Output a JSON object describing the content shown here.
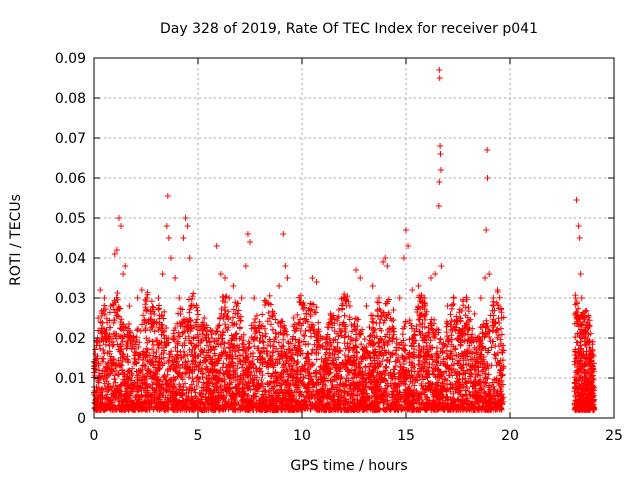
{
  "chart_data": {
    "type": "scatter",
    "title": "Day 328 of 2019, Rate Of TEC Index for receiver p041",
    "xlabel": "GPS time / hours",
    "ylabel": "ROTI / TECUs",
    "xlim": [
      0,
      25
    ],
    "ylim": [
      0,
      0.09
    ],
    "x_ticks": [
      0,
      5,
      10,
      15,
      20,
      25
    ],
    "y_ticks": [
      0,
      0.01,
      0.02,
      0.03,
      0.04,
      0.05,
      0.06,
      0.07,
      0.08,
      0.09
    ],
    "x_tick_labels": [
      "0",
      "5",
      "10",
      "15",
      "20",
      "25"
    ],
    "y_tick_labels": [
      "0",
      "0.01",
      "0.02",
      "0.03",
      "0.04",
      "0.05",
      "0.06",
      "0.07",
      "0.08",
      "0.09"
    ],
    "grid": true,
    "marker": "+",
    "series_color": "#ff0000",
    "series": [
      {
        "points": [
          [
            0.1,
            0.012
          ],
          [
            0.2,
            0.025
          ],
          [
            0.3,
            0.032
          ],
          [
            0.4,
            0.02
          ],
          [
            0.5,
            0.03
          ],
          [
            0.6,
            0.022
          ],
          [
            0.8,
            0.028
          ],
          [
            0.9,
            0.018
          ],
          [
            1.0,
            0.041
          ],
          [
            1.1,
            0.042
          ],
          [
            1.2,
            0.05
          ],
          [
            1.3,
            0.048
          ],
          [
            1.4,
            0.036
          ],
          [
            1.5,
            0.038
          ],
          [
            1.7,
            0.028
          ],
          [
            1.9,
            0.02
          ],
          [
            2.1,
            0.03
          ],
          [
            2.3,
            0.032
          ],
          [
            2.5,
            0.027
          ],
          [
            2.7,
            0.022
          ],
          [
            2.9,
            0.026
          ],
          [
            3.1,
            0.03
          ],
          [
            3.3,
            0.036
          ],
          [
            3.5,
            0.048
          ],
          [
            3.55,
            0.0555
          ],
          [
            3.6,
            0.045
          ],
          [
            3.7,
            0.04
          ],
          [
            3.9,
            0.035
          ],
          [
            4.1,
            0.03
          ],
          [
            4.3,
            0.045
          ],
          [
            4.4,
            0.05
          ],
          [
            4.5,
            0.048
          ],
          [
            4.6,
            0.04
          ],
          [
            4.8,
            0.028
          ],
          [
            5.0,
            0.02
          ],
          [
            5.3,
            0.025
          ],
          [
            5.6,
            0.022
          ],
          [
            5.9,
            0.043
          ],
          [
            6.1,
            0.036
          ],
          [
            6.3,
            0.035
          ],
          [
            6.5,
            0.03
          ],
          [
            6.7,
            0.033
          ],
          [
            6.9,
            0.026
          ],
          [
            7.1,
            0.03
          ],
          [
            7.3,
            0.038
          ],
          [
            7.4,
            0.046
          ],
          [
            7.5,
            0.044
          ],
          [
            7.7,
            0.03
          ],
          [
            8.0,
            0.02
          ],
          [
            8.3,
            0.016
          ],
          [
            8.6,
            0.022
          ],
          [
            8.9,
            0.033
          ],
          [
            9.1,
            0.046
          ],
          [
            9.2,
            0.038
          ],
          [
            9.3,
            0.035
          ],
          [
            9.6,
            0.025
          ],
          [
            9.9,
            0.018
          ],
          [
            10.2,
            0.026
          ],
          [
            10.5,
            0.035
          ],
          [
            10.7,
            0.034
          ],
          [
            11.0,
            0.02
          ],
          [
            11.4,
            0.018
          ],
          [
            11.7,
            0.025
          ],
          [
            12.0,
            0.03
          ],
          [
            12.3,
            0.028
          ],
          [
            12.6,
            0.037
          ],
          [
            12.8,
            0.035
          ],
          [
            13.1,
            0.028
          ],
          [
            13.4,
            0.033
          ],
          [
            13.7,
            0.03
          ],
          [
            13.9,
            0.039
          ],
          [
            14.0,
            0.04
          ],
          [
            14.1,
            0.038
          ],
          [
            14.4,
            0.027
          ],
          [
            14.7,
            0.03
          ],
          [
            14.9,
            0.04
          ],
          [
            15.0,
            0.047
          ],
          [
            15.1,
            0.043
          ],
          [
            15.3,
            0.032
          ],
          [
            15.6,
            0.033
          ],
          [
            15.9,
            0.03
          ],
          [
            16.2,
            0.035
          ],
          [
            16.4,
            0.036
          ],
          [
            16.6,
            0.087
          ],
          [
            16.62,
            0.085
          ],
          [
            16.64,
            0.068
          ],
          [
            16.66,
            0.066
          ],
          [
            16.68,
            0.062
          ],
          [
            16.6,
            0.059
          ],
          [
            16.58,
            0.053
          ],
          [
            16.7,
            0.038
          ],
          [
            17.0,
            0.028
          ],
          [
            17.3,
            0.03
          ],
          [
            17.6,
            0.025
          ],
          [
            18.0,
            0.022
          ],
          [
            18.3,
            0.026
          ],
          [
            18.6,
            0.03
          ],
          [
            18.8,
            0.035
          ],
          [
            18.9,
            0.067
          ],
          [
            18.92,
            0.06
          ],
          [
            18.85,
            0.047
          ],
          [
            19.0,
            0.036
          ],
          [
            19.2,
            0.03
          ],
          [
            19.4,
            0.032
          ],
          [
            19.6,
            0.025
          ],
          [
            23.2,
            0.0545
          ],
          [
            23.3,
            0.048
          ],
          [
            23.35,
            0.045
          ],
          [
            23.4,
            0.036
          ],
          [
            23.45,
            0.03
          ],
          [
            23.5,
            0.026
          ],
          [
            23.6,
            0.02
          ],
          [
            23.8,
            0.015
          ],
          [
            24.0,
            0.008
          ]
        ]
      }
    ]
  }
}
